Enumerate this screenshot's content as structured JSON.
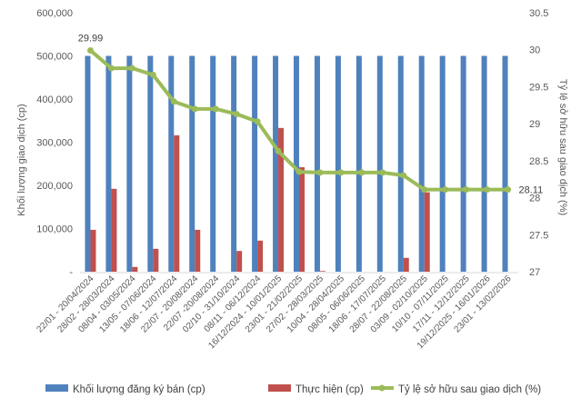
{
  "chart_data": {
    "type": "bar+line",
    "categories": [
      "22/01 - 20/04/2024",
      "28/02 - 28/03/2024",
      "08/04 - 03/05/2024",
      "13/05 - 07/06/2024",
      "18/06 - 12/07/2024",
      "22/07 - 20/08/2024",
      "22/07 -20/08/2024",
      "02/10 - 31/10/2024",
      "08/11 - 06/12/2024",
      "16/12/2024 - 10/01/2025",
      "23/01 - 21/02/2025",
      "27/02 - 28/03/2025",
      "10/04 - 28/04/2025",
      "08/05 - 06/06/2025",
      "18/06 - 17/07/2025",
      "28/07 - 22/08/2025",
      "03/09 - 02/10/2025",
      "10/10 - 07/11/2025",
      "17/11 - 12/12/2025",
      "19/12/2025 - 16/01/2026",
      "23/01 - 13/02/2026"
    ],
    "series": [
      {
        "name": "Khối lượng đăng ký bán (cp)",
        "type": "bar",
        "axis": "left",
        "color": "#4f81bd",
        "values": [
          500000,
          500000,
          500000,
          500000,
          500000,
          500000,
          500000,
          500000,
          500000,
          500000,
          500000,
          500000,
          500000,
          500000,
          500000,
          500000,
          500000,
          500000,
          500000,
          500000,
          500000
        ]
      },
      {
        "name": "Thực hiện (cp)",
        "type": "bar",
        "axis": "left",
        "color": "#c0504d",
        "values": [
          97000,
          192000,
          11000,
          53000,
          316000,
          97000,
          0,
          48000,
          72000,
          333000,
          242000,
          1500,
          0,
          0,
          0,
          32000,
          184000,
          0,
          0,
          0,
          0
        ]
      },
      {
        "name": "Tỷ lệ sở hữu sau giao dịch (%)",
        "type": "line",
        "axis": "right",
        "color": "#9bbb59",
        "values": [
          29.99,
          29.75,
          29.75,
          29.66,
          29.3,
          29.2,
          29.2,
          29.13,
          29.03,
          28.63,
          28.35,
          28.34,
          28.34,
          28.34,
          28.34,
          28.3,
          28.11,
          28.11,
          28.11,
          28.11,
          28.11
        ]
      }
    ],
    "data_labels": [
      {
        "series": 2,
        "index": 0,
        "text": "29.99"
      },
      {
        "series": 2,
        "index": 20,
        "text": "28.11"
      }
    ],
    "ylabel": "Khối lượng giao dịch (cp)",
    "y2label": "Tỷ lệ sở hữu sau giao dịch (%)",
    "ylim": [
      0,
      600000
    ],
    "y2lim": [
      27,
      30.5
    ],
    "yticks": [
      "-",
      "100,000",
      "200,000",
      "300,000",
      "400,000",
      "500,000",
      "600,000"
    ],
    "y2ticks": [
      "27",
      "27.5",
      "28",
      "28.5",
      "29",
      "29.5",
      "30",
      "30.5"
    ],
    "legend": "bottom",
    "grid": false
  }
}
